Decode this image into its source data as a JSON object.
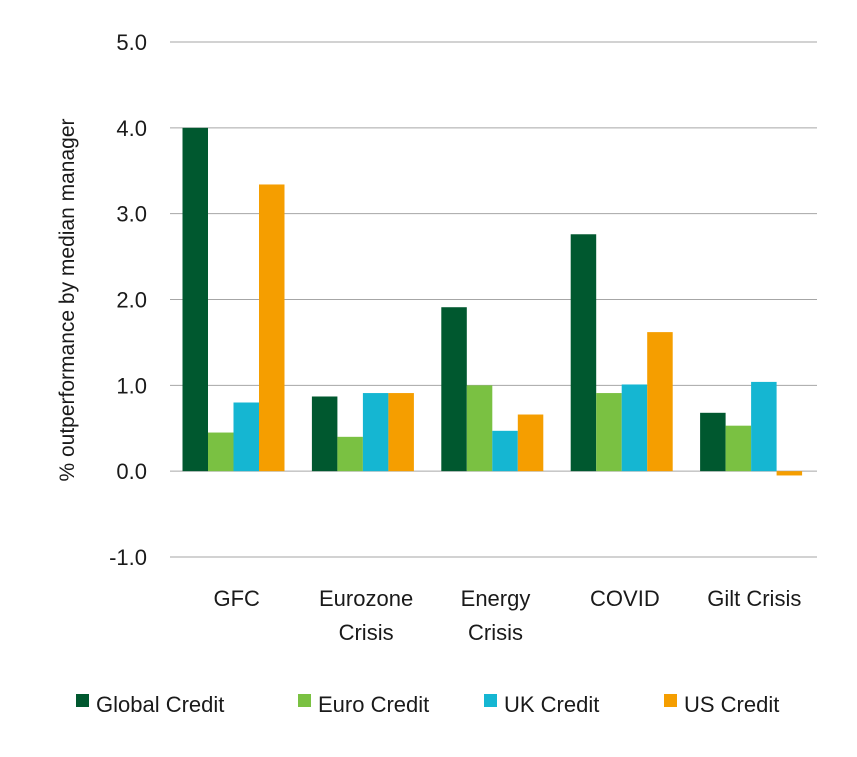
{
  "chart_data": {
    "type": "bar",
    "title": "",
    "xlabel": "",
    "ylabel": "% outperformance by median manager",
    "ylim": [
      -1.0,
      5.0
    ],
    "yticks": [
      -1.0,
      0.0,
      1.0,
      2.0,
      3.0,
      4.0,
      5.0
    ],
    "ytick_labels": [
      "-1.0",
      "0.0",
      "1.0",
      "2.0",
      "3.0",
      "4.0",
      "5.0"
    ],
    "grid": true,
    "legend_position": "bottom",
    "categories": [
      [
        "GFC"
      ],
      [
        "Eurozone",
        "Crisis"
      ],
      [
        "Energy",
        "Crisis"
      ],
      [
        "COVID"
      ],
      [
        "Gilt Crisis"
      ]
    ],
    "series": [
      {
        "name": "Global Credit",
        "color": "#00582f",
        "values": [
          4.0,
          0.87,
          1.91,
          2.76,
          0.68
        ]
      },
      {
        "name": "Euro Credit",
        "color": "#7ac142",
        "values": [
          0.45,
          0.4,
          1.0,
          0.91,
          0.53
        ]
      },
      {
        "name": "UK Credit",
        "color": "#15b6d2",
        "values": [
          0.8,
          0.91,
          0.47,
          1.01,
          1.04
        ]
      },
      {
        "name": "US Credit",
        "color": "#f59e00",
        "values": [
          3.34,
          0.91,
          0.66,
          1.62,
          -0.05
        ]
      }
    ],
    "gridline_color": "#a6a6a6"
  }
}
